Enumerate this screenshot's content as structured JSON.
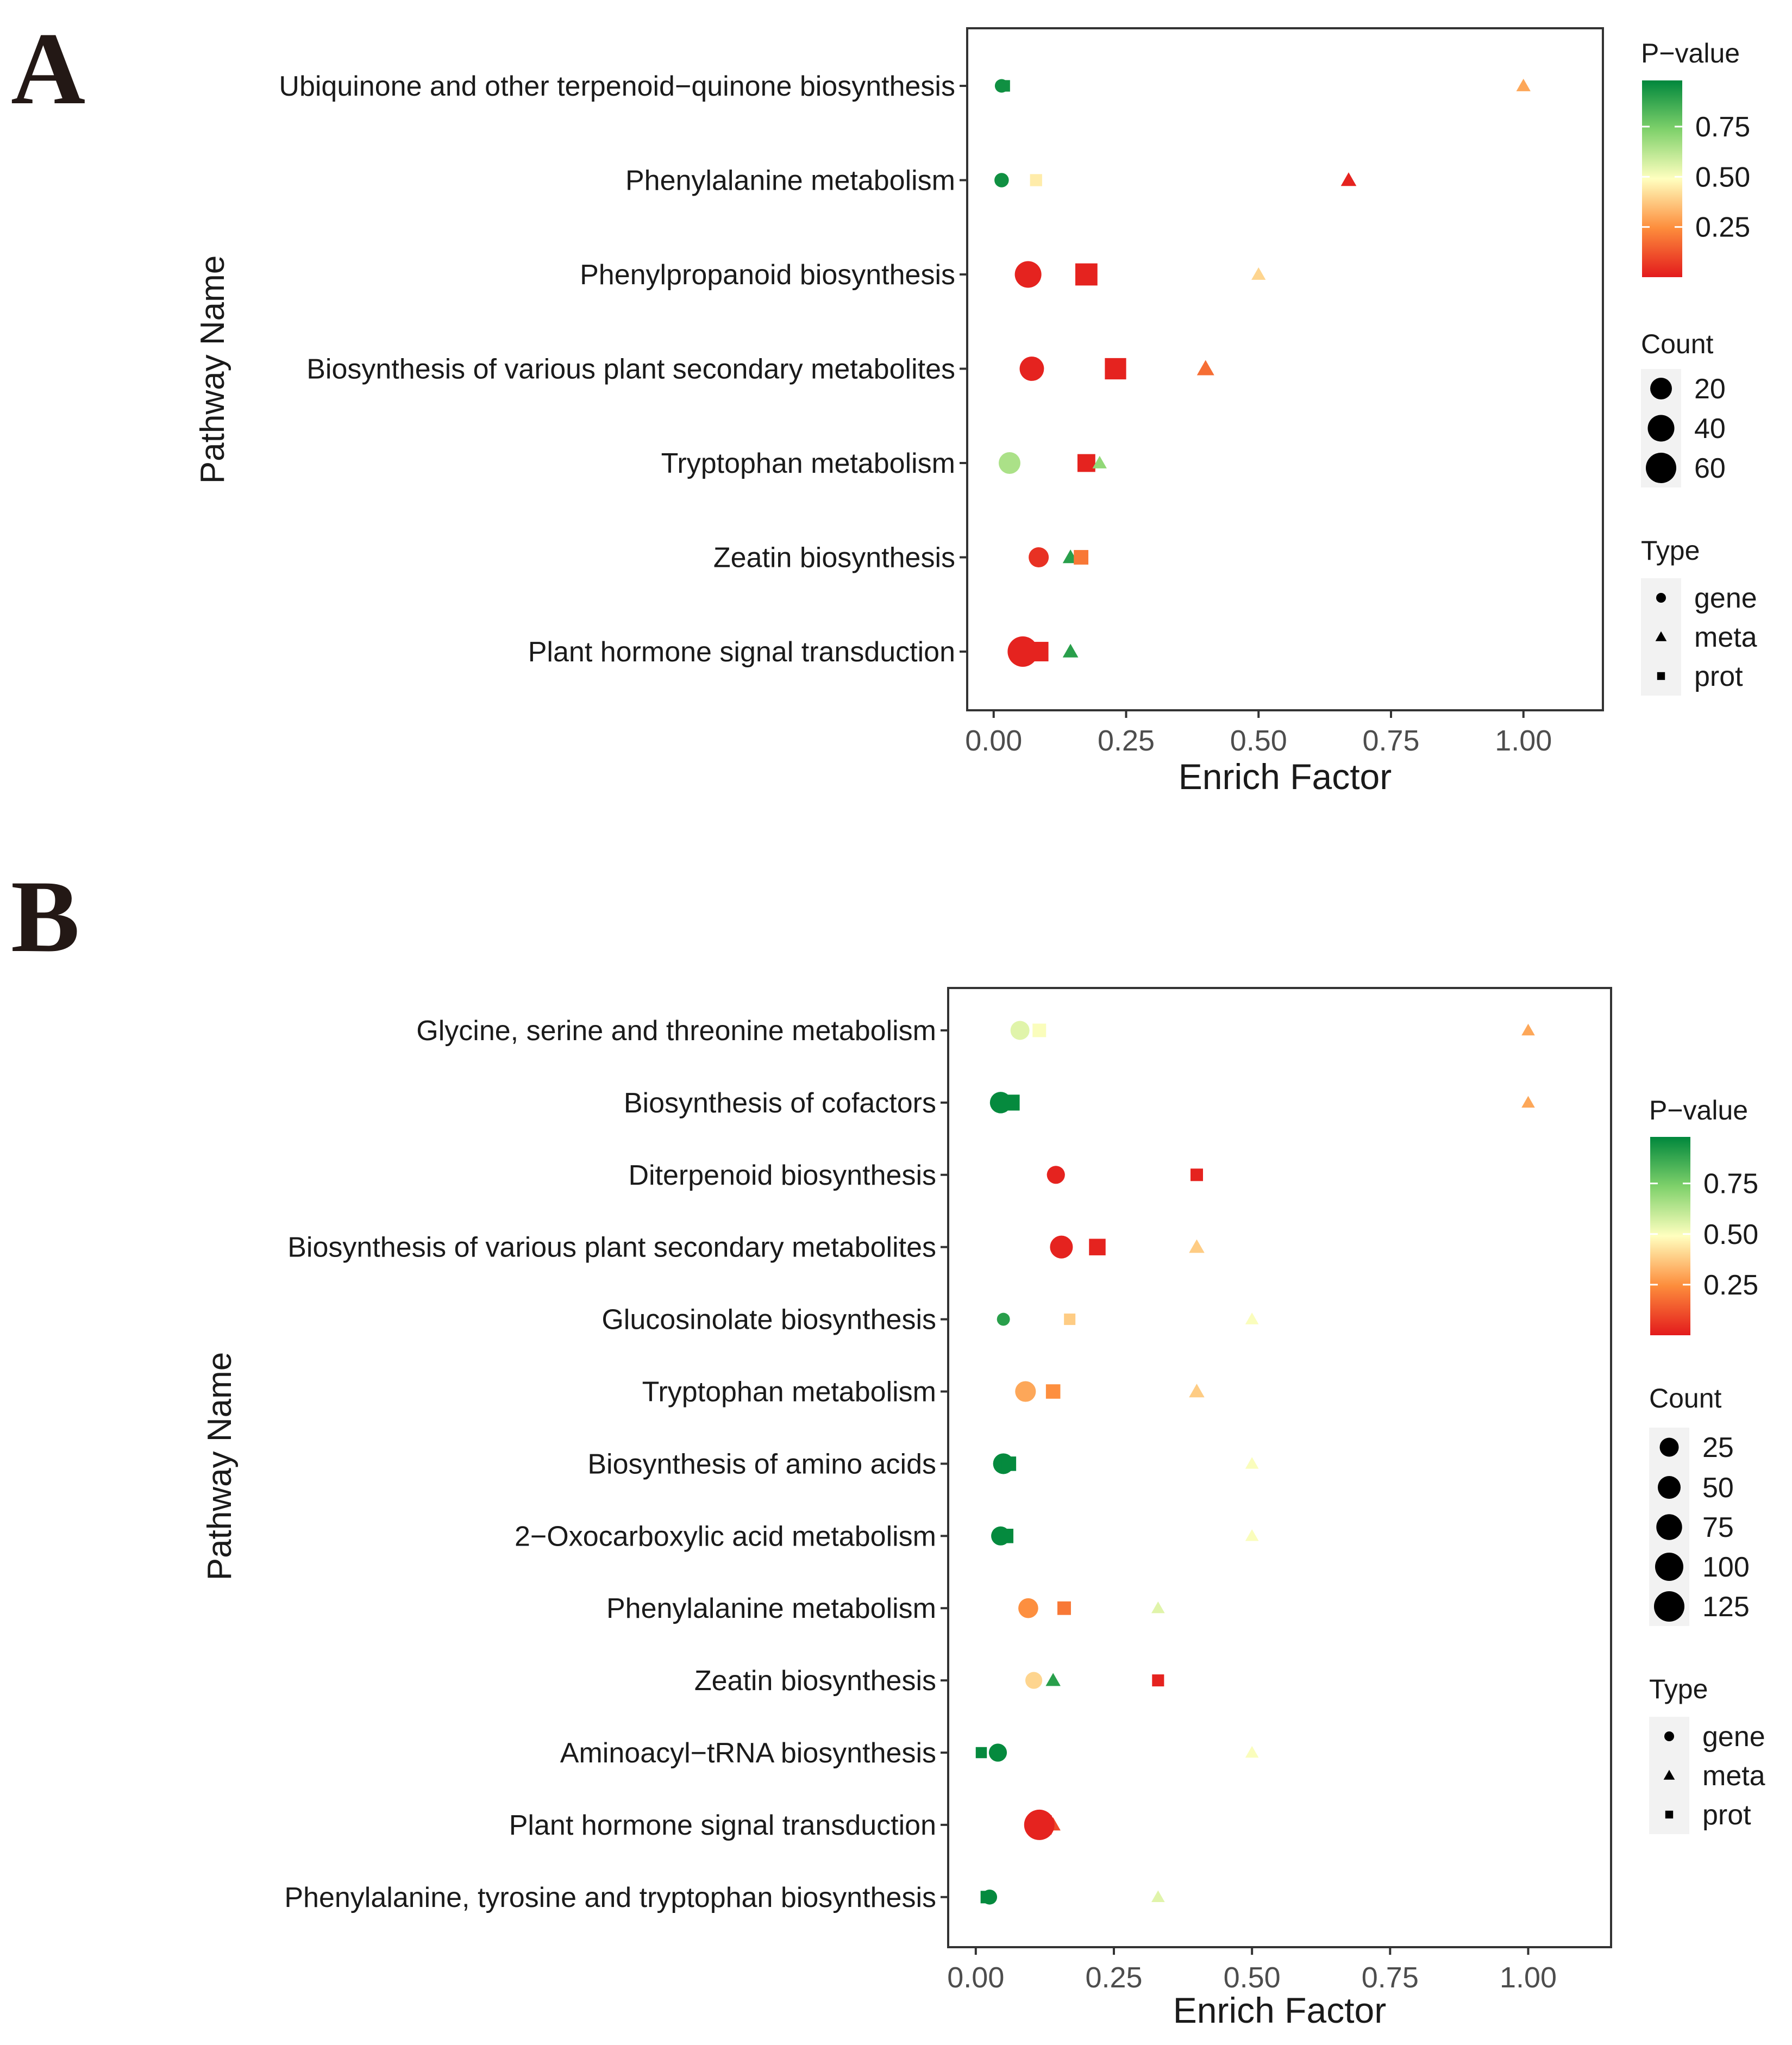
{
  "figure": {
    "panels": [
      "A",
      "B"
    ]
  },
  "colors": {
    "low": "#d7191c",
    "mid_low": "#fdae61",
    "mid": "#ffffbf",
    "mid_high": "#a6d96a",
    "high": "#1a9641",
    "deep_high": "#006d2c",
    "frame": "#333333",
    "text": "#1a1a1a",
    "tick_text": "#4d4d4d"
  },
  "chart_data": [
    {
      "panel": "A",
      "type": "scatter",
      "title": "",
      "xlabel": "Enrich Factor",
      "ylabel": "Pathway Name",
      "xlim": [
        -0.05,
        1.15
      ],
      "xticks": [
        0,
        0.25,
        0.5,
        0.75,
        1.0
      ],
      "xtick_labels": [
        "0.00",
        "0.25",
        "0.50",
        "0.75",
        "1.00"
      ],
      "categories": [
        "Ubiquinone and other terpenoid−quinone biosynthesis",
        "Phenylalanine metabolism",
        "Phenylpropanoid biosynthesis",
        "Biosynthesis of various plant secondary metabolites",
        "Tryptophan metabolism",
        "Zeatin biosynthesis",
        "Plant hormone signal transduction"
      ],
      "points": [
        {
          "pathway": 0,
          "type": "prot",
          "x": 0.02,
          "p": 0.95,
          "count": 3
        },
        {
          "pathway": 0,
          "type": "gene",
          "x": 0.015,
          "p": 0.95,
          "count": 2
        },
        {
          "pathway": 0,
          "type": "meta",
          "x": 1.0,
          "p": 0.3,
          "count": 1
        },
        {
          "pathway": 1,
          "type": "gene",
          "x": 0.015,
          "p": 0.95,
          "count": 3
        },
        {
          "pathway": 1,
          "type": "prot",
          "x": 0.08,
          "p": 0.45,
          "count": 4
        },
        {
          "pathway": 1,
          "type": "meta",
          "x": 0.67,
          "p": 0.02,
          "count": 2
        },
        {
          "pathway": 2,
          "type": "gene",
          "x": 0.065,
          "p": 0.02,
          "count": 40
        },
        {
          "pathway": 2,
          "type": "prot",
          "x": 0.175,
          "p": 0.02,
          "count": 45
        },
        {
          "pathway": 2,
          "type": "meta",
          "x": 0.5,
          "p": 0.4,
          "count": 1
        },
        {
          "pathway": 3,
          "type": "gene",
          "x": 0.072,
          "p": 0.02,
          "count": 30
        },
        {
          "pathway": 3,
          "type": "prot",
          "x": 0.23,
          "p": 0.02,
          "count": 40
        },
        {
          "pathway": 3,
          "type": "meta",
          "x": 0.4,
          "p": 0.18,
          "count": 4
        },
        {
          "pathway": 4,
          "type": "gene",
          "x": 0.03,
          "p": 0.65,
          "count": 20
        },
        {
          "pathway": 4,
          "type": "prot",
          "x": 0.175,
          "p": 0.02,
          "count": 22
        },
        {
          "pathway": 4,
          "type": "meta",
          "x": 0.2,
          "p": 0.7,
          "count": 1
        },
        {
          "pathway": 5,
          "type": "gene",
          "x": 0.085,
          "p": 0.05,
          "count": 15
        },
        {
          "pathway": 5,
          "type": "meta",
          "x": 0.145,
          "p": 0.9,
          "count": 2
        },
        {
          "pathway": 5,
          "type": "prot",
          "x": 0.165,
          "p": 0.2,
          "count": 10
        },
        {
          "pathway": 6,
          "type": "gene",
          "x": 0.055,
          "p": 0.02,
          "count": 60
        },
        {
          "pathway": 6,
          "type": "prot",
          "x": 0.085,
          "p": 0.02,
          "count": 30
        },
        {
          "pathway": 6,
          "type": "meta",
          "x": 0.145,
          "p": 0.9,
          "count": 2
        }
      ],
      "legend": {
        "color_title": "P−value",
        "color_ticks": [
          0.75,
          0.5,
          0.25
        ],
        "color_tick_labels": [
          "0.75",
          "0.50",
          "0.25"
        ],
        "color_range": [
          0.0,
          0.98
        ],
        "count_title": "Count",
        "count_values": [
          20,
          40,
          60
        ],
        "count_labels": [
          "20",
          "40",
          "60"
        ],
        "count_range": [
          1,
          60
        ],
        "type_title": "Type",
        "type_labels": [
          "gene",
          "meta",
          "prot"
        ]
      }
    },
    {
      "panel": "B",
      "type": "scatter",
      "title": "",
      "xlabel": "Enrich Factor",
      "ylabel": "Pathway Name",
      "xlim": [
        -0.05,
        1.15
      ],
      "xticks": [
        0,
        0.25,
        0.5,
        0.75,
        1.0
      ],
      "xtick_labels": [
        "0.00",
        "0.25",
        "0.50",
        "0.75",
        "1.00"
      ],
      "categories": [
        "Glycine, serine and threonine metabolism",
        "Biosynthesis of cofactors",
        "Diterpenoid biosynthesis",
        "Biosynthesis of various plant secondary metabolites",
        "Glucosinolate biosynthesis",
        "Tryptophan metabolism",
        "Biosynthesis of amino acids",
        "2−Oxocarboxylic acid metabolism",
        "Phenylalanine metabolism",
        "Zeatin biosynthesis",
        "Aminoacyl−tRNA biosynthesis",
        "Plant hormone signal transduction",
        "Phenylalanine, tyrosine and tryptophan biosynthesis"
      ],
      "points": [
        {
          "pathway": 0,
          "type": "gene",
          "x": 0.08,
          "p": 0.55,
          "count": 25
        },
        {
          "pathway": 0,
          "type": "prot",
          "x": 0.115,
          "p": 0.5,
          "count": 15
        },
        {
          "pathway": 0,
          "type": "meta",
          "x": 1.0,
          "p": 0.3,
          "count": 1
        },
        {
          "pathway": 1,
          "type": "gene",
          "x": 0.045,
          "p": 0.97,
          "count": 40
        },
        {
          "pathway": 1,
          "type": "prot",
          "x": 0.065,
          "p": 0.97,
          "count": 30
        },
        {
          "pathway": 1,
          "type": "meta",
          "x": 1.0,
          "p": 0.3,
          "count": 1
        },
        {
          "pathway": 2,
          "type": "gene",
          "x": 0.145,
          "p": 0.02,
          "count": 20
        },
        {
          "pathway": 2,
          "type": "prot",
          "x": 0.4,
          "p": 0.02,
          "count": 10
        },
        {
          "pathway": 3,
          "type": "gene",
          "x": 0.155,
          "p": 0.02,
          "count": 50
        },
        {
          "pathway": 3,
          "type": "prot",
          "x": 0.22,
          "p": 0.02,
          "count": 35
        },
        {
          "pathway": 3,
          "type": "meta",
          "x": 0.4,
          "p": 0.38,
          "count": 4
        },
        {
          "pathway": 4,
          "type": "gene",
          "x": 0.05,
          "p": 0.9,
          "count": 3
        },
        {
          "pathway": 4,
          "type": "prot",
          "x": 0.17,
          "p": 0.38,
          "count": 6
        },
        {
          "pathway": 4,
          "type": "meta",
          "x": 0.5,
          "p": 0.5,
          "count": 1
        },
        {
          "pathway": 5,
          "type": "gene",
          "x": 0.09,
          "p": 0.3,
          "count": 35
        },
        {
          "pathway": 5,
          "type": "prot",
          "x": 0.14,
          "p": 0.25,
          "count": 20
        },
        {
          "pathway": 5,
          "type": "meta",
          "x": 0.4,
          "p": 0.38,
          "count": 4
        },
        {
          "pathway": 6,
          "type": "gene",
          "x": 0.05,
          "p": 0.97,
          "count": 35
        },
        {
          "pathway": 6,
          "type": "prot",
          "x": 0.06,
          "p": 0.97,
          "count": 20
        },
        {
          "pathway": 6,
          "type": "meta",
          "x": 0.5,
          "p": 0.5,
          "count": 1
        },
        {
          "pathway": 7,
          "type": "gene",
          "x": 0.045,
          "p": 0.97,
          "count": 25
        },
        {
          "pathway": 7,
          "type": "prot",
          "x": 0.055,
          "p": 0.97,
          "count": 20
        },
        {
          "pathway": 7,
          "type": "meta",
          "x": 0.5,
          "p": 0.5,
          "count": 1
        },
        {
          "pathway": 8,
          "type": "gene",
          "x": 0.095,
          "p": 0.25,
          "count": 30
        },
        {
          "pathway": 8,
          "type": "prot",
          "x": 0.16,
          "p": 0.2,
          "count": 15
        },
        {
          "pathway": 8,
          "type": "meta",
          "x": 0.33,
          "p": 0.55,
          "count": 1
        },
        {
          "pathway": 9,
          "type": "gene",
          "x": 0.105,
          "p": 0.4,
          "count": 15
        },
        {
          "pathway": 9,
          "type": "meta",
          "x": 0.14,
          "p": 0.9,
          "count": 3
        },
        {
          "pathway": 9,
          "type": "prot",
          "x": 0.33,
          "p": 0.02,
          "count": 8
        },
        {
          "pathway": 10,
          "type": "prot",
          "x": 0.01,
          "p": 0.97,
          "count": 5
        },
        {
          "pathway": 10,
          "type": "gene",
          "x": 0.04,
          "p": 0.97,
          "count": 20
        },
        {
          "pathway": 10,
          "type": "meta",
          "x": 0.5,
          "p": 0.5,
          "count": 1
        },
        {
          "pathway": 11,
          "type": "prot",
          "x": 0.12,
          "p": 0.02,
          "count": 60
        },
        {
          "pathway": 11,
          "type": "meta",
          "x": 0.14,
          "p": 0.1,
          "count": 3
        },
        {
          "pathway": 11,
          "type": "gene",
          "x": 0.115,
          "p": 0.02,
          "count": 125
        },
        {
          "pathway": 12,
          "type": "prot",
          "x": 0.02,
          "p": 0.97,
          "count": 10
        },
        {
          "pathway": 12,
          "type": "gene",
          "x": 0.025,
          "p": 0.97,
          "count": 8
        },
        {
          "pathway": 12,
          "type": "meta",
          "x": 0.33,
          "p": 0.55,
          "count": 1
        }
      ],
      "legend": {
        "color_title": "P−value",
        "color_ticks": [
          0.75,
          0.5,
          0.25
        ],
        "color_tick_labels": [
          "0.75",
          "0.50",
          "0.25"
        ],
        "color_range": [
          0.0,
          0.98
        ],
        "count_title": "Count",
        "count_values": [
          25,
          50,
          75,
          100,
          125
        ],
        "count_labels": [
          "25",
          "50",
          "75",
          "100",
          "125"
        ],
        "count_range": [
          1,
          125
        ],
        "type_title": "Type",
        "type_labels": [
          "gene",
          "meta",
          "prot"
        ]
      }
    }
  ]
}
